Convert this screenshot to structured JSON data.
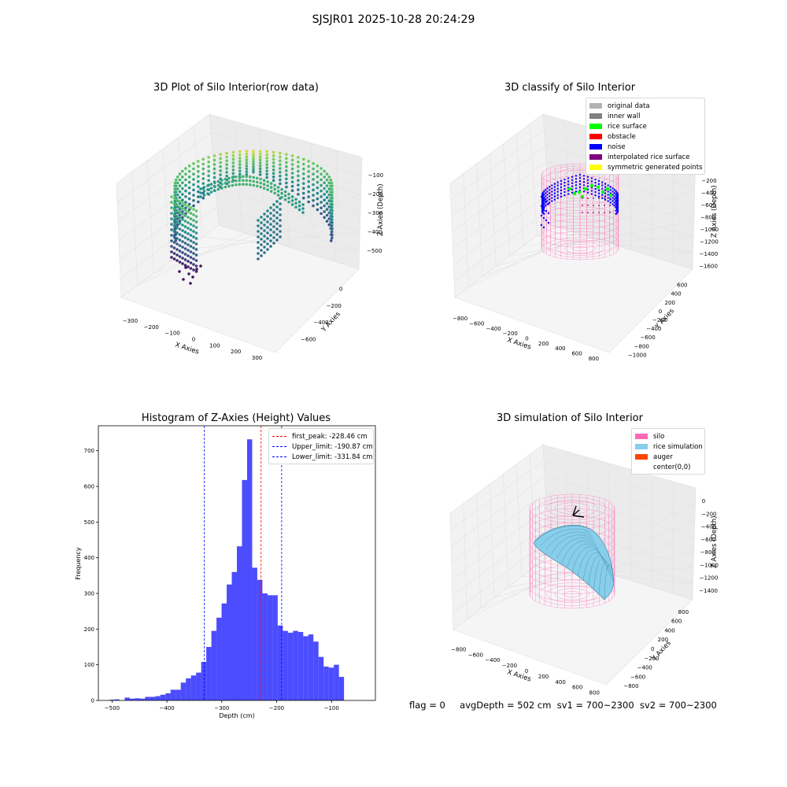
{
  "suptitle": "SJSJR01 2025-10-28 20:24:29",
  "panels": {
    "raw": {
      "title": "3D Plot of Silo Interior(row data)",
      "xlabel": "X Axies",
      "ylabel": "Y Axies",
      "zlabel": "Z Axies (Depth)",
      "xticks": [
        "−300",
        "−200",
        "−100",
        "0",
        "100",
        "200",
        "300"
      ],
      "yticks": [
        "0",
        "−200",
        "−400",
        "−600"
      ],
      "zticks": [
        "−100",
        "−200",
        "−300",
        "−400",
        "−500"
      ]
    },
    "classify": {
      "title": "3D classify of Silo Interior",
      "xlabel": "X Axies",
      "ylabel": "Y Axies",
      "zlabel": "Z Axies (Depth)",
      "xticks": [
        "−800",
        "−600",
        "−400",
        "−200",
        "0",
        "200",
        "400",
        "600",
        "800"
      ],
      "yticks": [
        "600",
        "400",
        "200",
        "0",
        "−200",
        "−400",
        "−600",
        "−800",
        "−1000"
      ],
      "zticks": [
        "0",
        "−200",
        "−400",
        "−600",
        "−800",
        "−1000",
        "−1200",
        "−1400",
        "−1600"
      ],
      "legend": [
        {
          "label": "original data",
          "color": "#b3b3b3"
        },
        {
          "label": "inner wall",
          "color": "#808080"
        },
        {
          "label": "rice surface",
          "color": "#00ff00"
        },
        {
          "label": "obstacle",
          "color": "#ff0000"
        },
        {
          "label": "noise",
          "color": "#0000ff"
        },
        {
          "label": "interpolated rice surface",
          "color": "#800080"
        },
        {
          "label": "symmetric generated points",
          "color": "#ffff00"
        }
      ]
    },
    "simulation": {
      "title": "3D simulation of Silo Interior",
      "xlabel": "X Axies",
      "ylabel": "Y Axies",
      "zlabel": "Z Axies (Depth)",
      "xticks": [
        "−800",
        "−600",
        "−400",
        "−200",
        "0",
        "200",
        "400",
        "600",
        "800"
      ],
      "yticks": [
        "800",
        "600",
        "400",
        "200",
        "0",
        "−200",
        "−400",
        "−600",
        "−800"
      ],
      "zticks": [
        "0",
        "−200",
        "−400",
        "−600",
        "−800",
        "−1000",
        "−1200",
        "−1400"
      ],
      "legend": [
        {
          "label": "silo",
          "color": "#ff69b4"
        },
        {
          "label": "rice simulation",
          "color": "#87ceeb"
        },
        {
          "label": "auger",
          "color": "#ff4500"
        },
        {
          "label": "center(0,0)",
          "color": ""
        }
      ]
    }
  },
  "chart_data": {
    "type": "bar",
    "title": "Histogram of Z-Axies (Height) Values",
    "xlabel": "Depth (cm)",
    "ylabel": "Frequency",
    "xlim": [
      -525,
      -20
    ],
    "ylim": [
      0,
      770
    ],
    "xticks": [
      -500,
      -400,
      -300,
      -200,
      -100
    ],
    "xtick_labels": [
      "−500",
      "−400",
      "−300",
      "−200",
      "−100"
    ],
    "yticks": [
      0,
      100,
      200,
      300,
      400,
      500,
      600,
      700
    ],
    "bar_color": "#0000ff",
    "bin_start": -505,
    "bin_width": 9.3,
    "values": [
      2,
      3,
      0,
      8,
      5,
      6,
      5,
      10,
      10,
      12,
      16,
      20,
      30,
      30,
      50,
      62,
      70,
      78,
      108,
      150,
      195,
      232,
      272,
      325,
      360,
      432,
      618,
      732,
      372,
      338,
      300,
      295,
      295,
      210,
      195,
      190,
      195,
      192,
      180,
      185,
      165,
      122,
      95,
      92,
      100,
      66
    ],
    "vlines": [
      {
        "label": "first_peak: -228.46 cm",
        "x": -228.46,
        "color": "#ff0000"
      },
      {
        "label": "Upper_limit: -190.87 cm",
        "x": -190.87,
        "color": "#0000ff"
      },
      {
        "label": "Lower_limit: -331.84 cm",
        "x": -331.84,
        "color": "#0000ff"
      }
    ],
    "legend_position": "upper-right"
  },
  "footer": {
    "flag": "flag = 0",
    "avg_depth": "avgDepth = 502 cm",
    "sv1": "sv1 = 700~2300",
    "sv2": "sv2 = 700~2300"
  }
}
